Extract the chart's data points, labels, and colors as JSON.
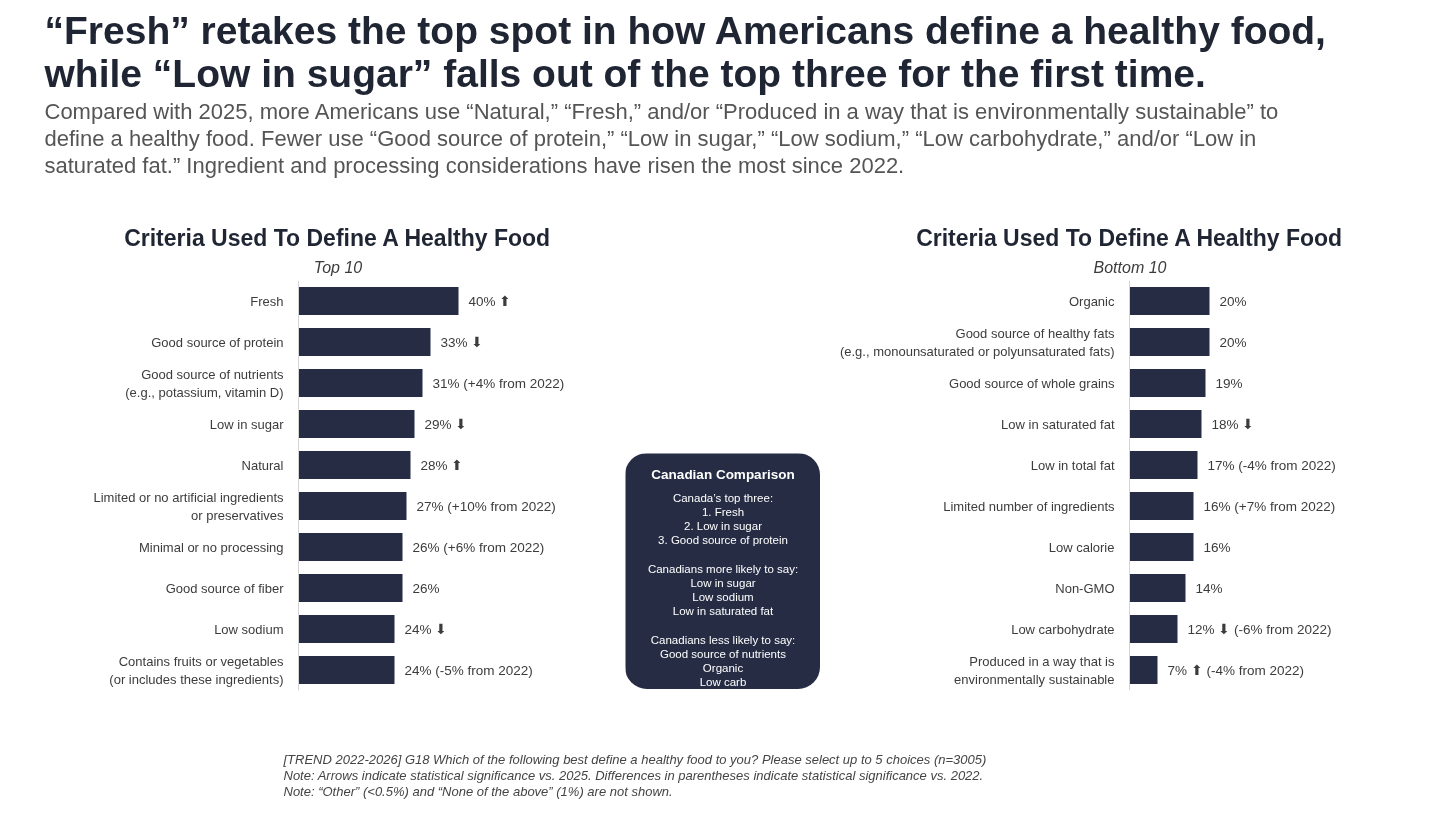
{
  "chart_data": [
    {
      "type": "other",
      "title": "“Fresh” retakes the top spot in how Americans define a healthy food, while “Low in sugar” falls out of the top three for the first time.",
      "subtitle": "Compared with 2025, more Americans use “Natural,” “Fresh,” and/or “Produced in a way that is environmentally sustainable” to define a healthy food. Fewer use “Good source of protein,” “Low in sugar,” “Low sodium,” “Low carbohydrate,” and/or “Low in saturated fat.” Ingredient and processing considerations have risen the most since 2022."
    },
    {
      "type": "bar",
      "orientation": "horizontal",
      "title": "Criteria Used To Define A Healthy Food",
      "subtitle": "Top 10",
      "categories": [
        "Fresh",
        "Good source of protein",
        "Good source of nutrients\n(e.g., potassium, vitamin D)",
        "Low in sugar",
        "Natural",
        "Limited or no artificial ingredients\nor preservatives",
        "Minimal or no processing",
        "Good source of fiber",
        "Low sodium",
        "Contains fruits or vegetables\n(or includes these ingredients)"
      ],
      "series": [
        {
          "color": "#252c44",
          "values": [
            40,
            33,
            31,
            29,
            28,
            27,
            26,
            26,
            24,
            24
          ],
          "value_labels": [
            "40% ⬆",
            "33% ⬇",
            "31% (+4% from 2022)",
            "29% ⬇",
            "28% ⬆",
            "27% (+10% from 2022)",
            "26% (+6% from 2022)",
            "26%",
            "24% ⬇",
            "24% (-5% from 2022)"
          ]
        }
      ]
    },
    {
      "type": "other",
      "title": "Canadian Comparison",
      "annotations": [
        "Canada’s top three:\n1. Fresh\n2. Low in sugar\n3. Good source of protein",
        "Canadians more likely to say:\nLow in sugar\nLow sodium\nLow in saturated fat",
        "Canadians less likely to say:\nGood source of nutrients\nOrganic\nLow carb"
      ]
    },
    {
      "type": "bar",
      "orientation": "horizontal",
      "title": "Criteria Used To Define A Healthy Food",
      "subtitle": "Bottom 10",
      "categories": [
        "Organic",
        "Good source of healthy fats\n(e.g., monounsaturated or polyunsaturated fats)",
        "Good source of whole grains",
        "Low in saturated fat",
        "Low in total fat",
        "Limited number of ingredients",
        "Low calorie",
        "Non-GMO",
        "Low carbohydrate",
        "Produced in a way that is\nenvironmentally sustainable"
      ],
      "series": [
        {
          "color": "#252c44",
          "values": [
            20,
            20,
            19,
            18,
            17,
            16,
            16,
            14,
            12,
            7
          ],
          "value_labels": [
            "20%",
            "20%",
            "19%",
            "18% ⬇",
            "17% (-4% from 2022)",
            "16% (+7% from 2022)",
            "16%",
            "14%",
            "12% ⬇ (-6% from 2022)",
            "7% ⬆ (-4% from 2022)"
          ]
        }
      ]
    },
    {
      "type": "other",
      "annotations": [
        "[TREND 2022-2026] G18 Which of the following best define a healthy food to you? Please select up to 5 choices (n=3005)",
        "Note: Arrows indicate statistical significance vs. 2025. Differences in parentheses indicate statistical significance vs. 2022.",
        "Note: “Other” (<0.5%) and “None of the above” (1%) are not shown."
      ]
    }
  ]
}
